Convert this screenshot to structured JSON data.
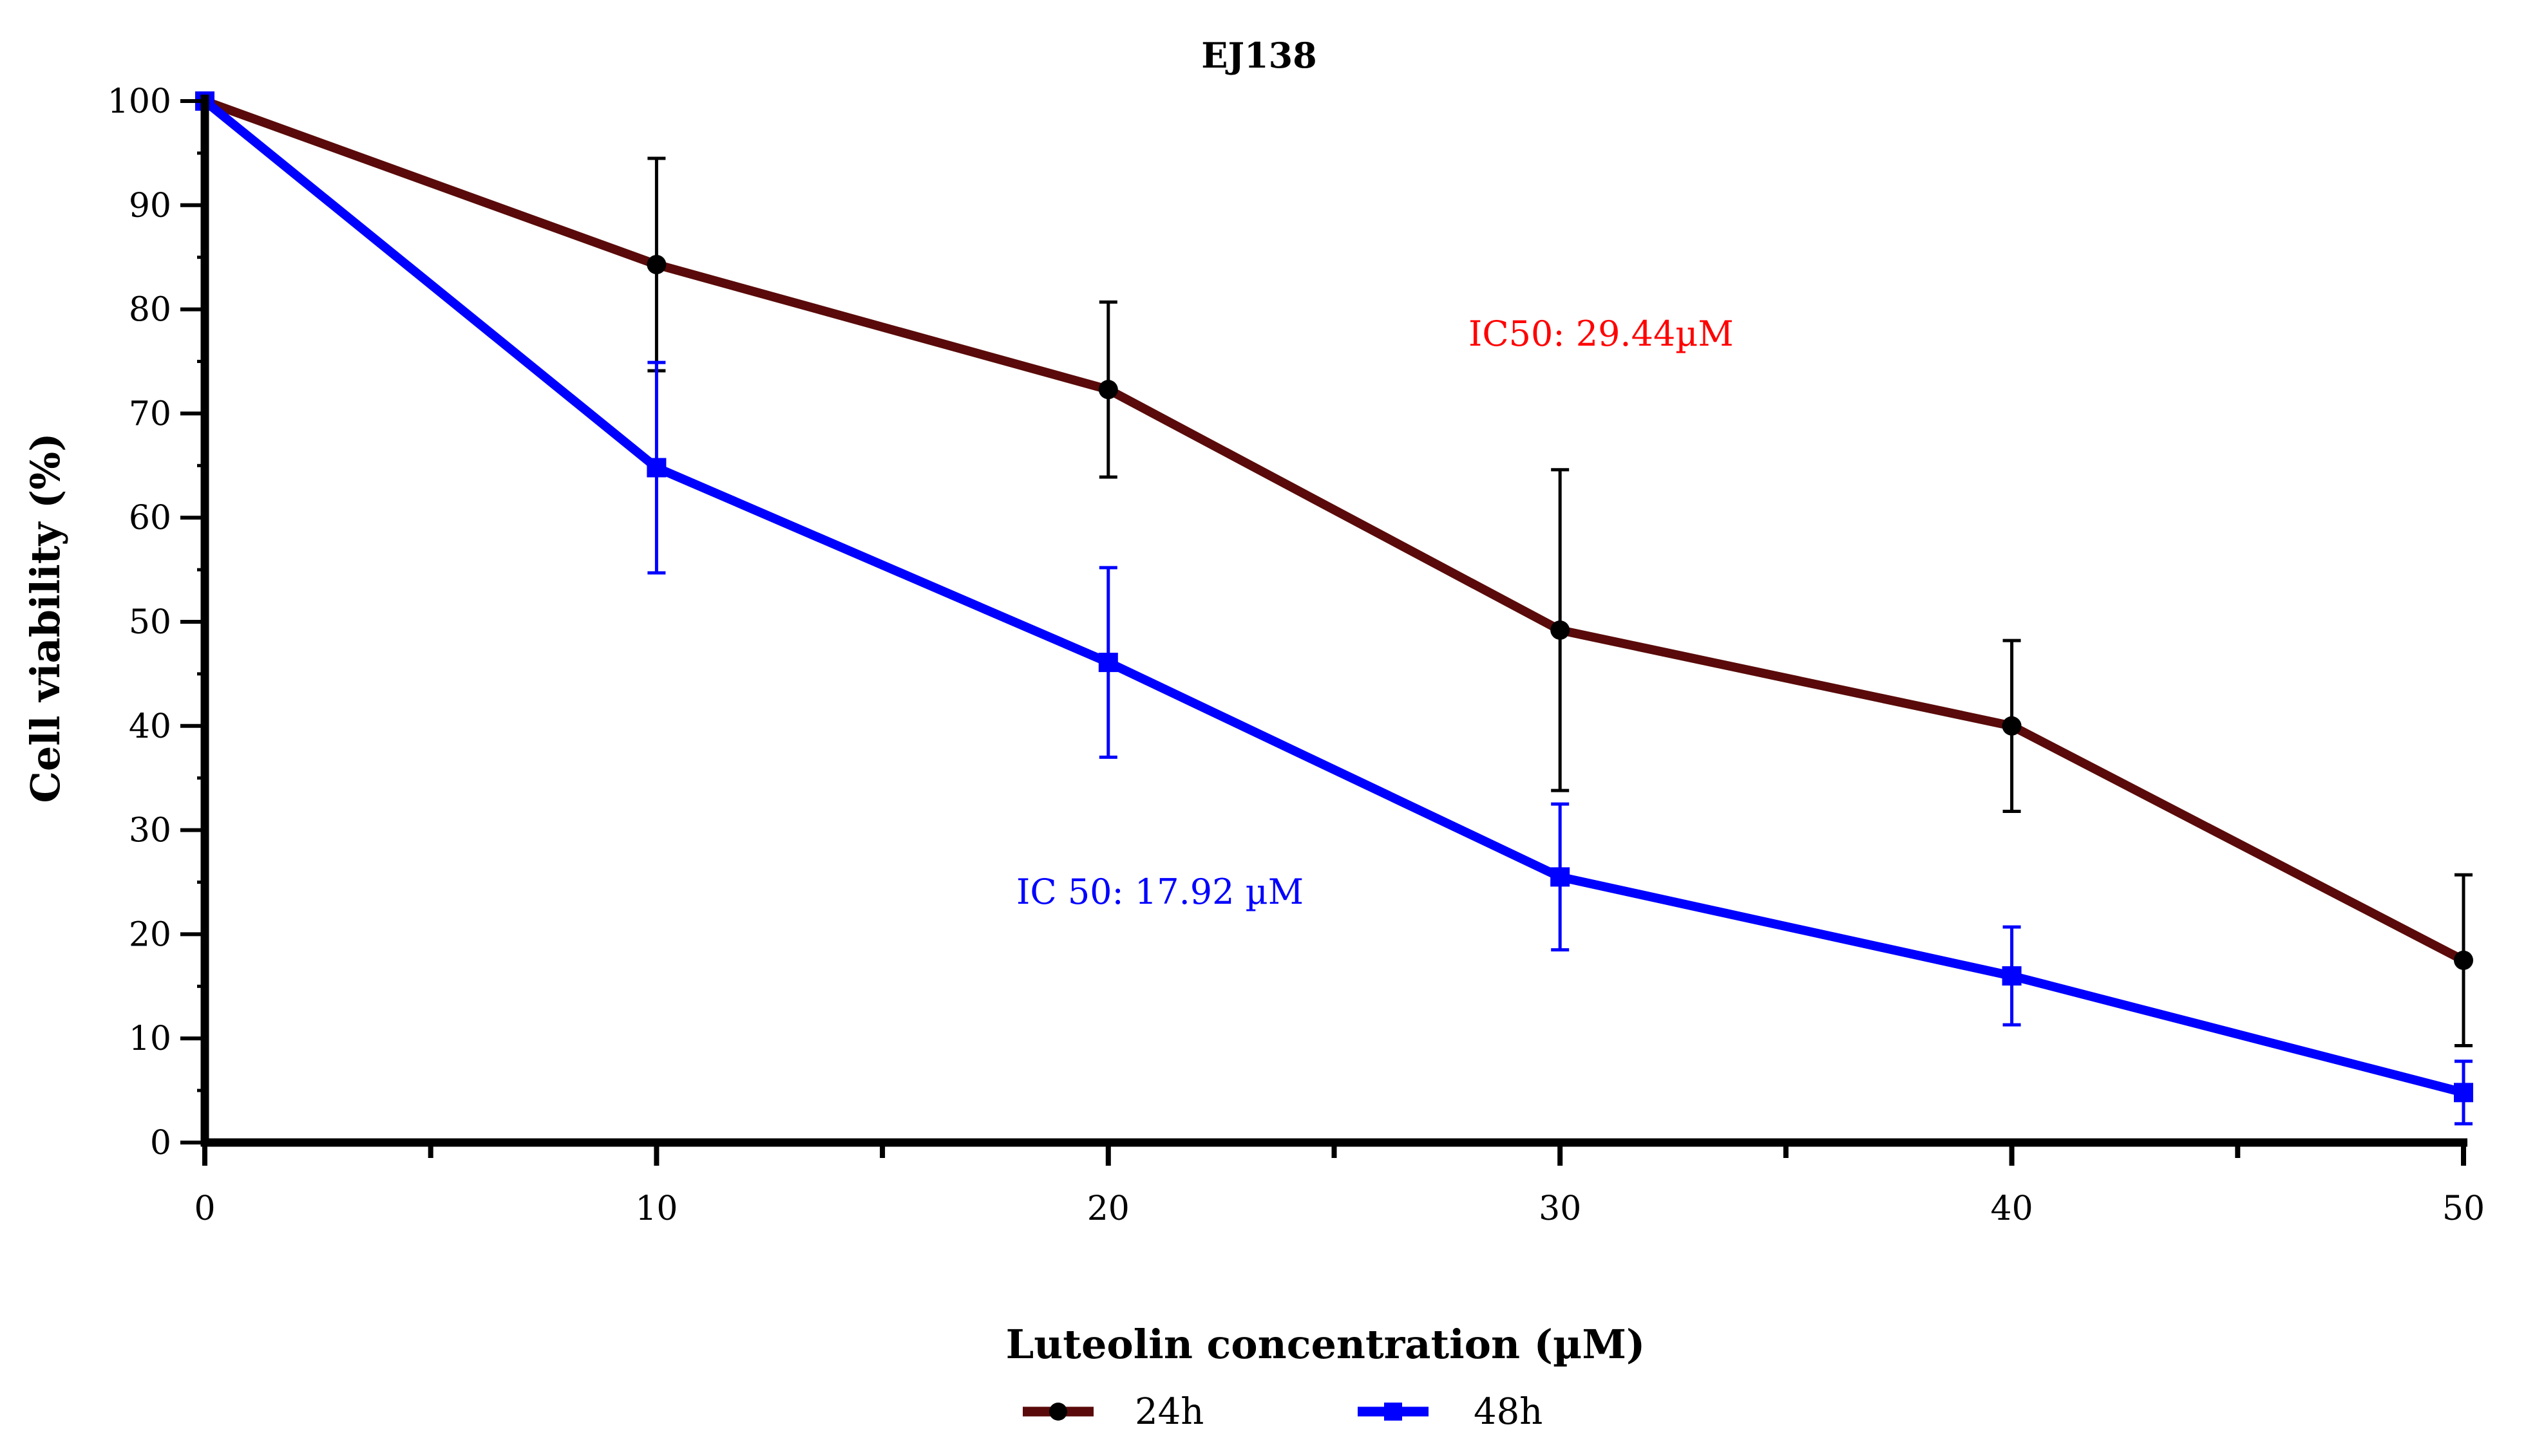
{
  "chart_data": {
    "type": "line",
    "title": "EJ138",
    "xlabel": "Luteolin concentration (µM)",
    "ylabel": "Cell viability (%)",
    "xlim": [
      0,
      50
    ],
    "ylim": [
      0,
      100
    ],
    "x_ticks": [
      0,
      10,
      20,
      30,
      40,
      50
    ],
    "y_ticks": [
      0,
      10,
      20,
      30,
      40,
      50,
      60,
      70,
      80,
      90,
      100
    ],
    "x": [
      0,
      10,
      20,
      30,
      40,
      50
    ],
    "grid": false,
    "legend_position": "bottom",
    "series": [
      {
        "name": "24h",
        "color": "#5a0a0a",
        "marker": "circle",
        "marker_color": "#000000",
        "errorbar_color": "#000000",
        "values": [
          100,
          84.3,
          72.3,
          49.2,
          40.0,
          17.5
        ],
        "errors": [
          0,
          10.2,
          8.4,
          15.4,
          8.2,
          8.2
        ]
      },
      {
        "name": "48h",
        "color": "#0000ff",
        "marker": "square",
        "marker_color": "#0000ff",
        "errorbar_color": "#0000ff",
        "values": [
          100,
          64.8,
          46.1,
          25.5,
          16.0,
          4.8
        ],
        "errors": [
          0,
          10.1,
          9.1,
          7.0,
          4.7,
          3.0
        ]
      }
    ],
    "annotations": [
      {
        "text": "IC50: 29.44µM",
        "color": "#ff0000"
      },
      {
        "text": "IC 50: 17.92 µM",
        "color": "#0000ff"
      }
    ]
  }
}
